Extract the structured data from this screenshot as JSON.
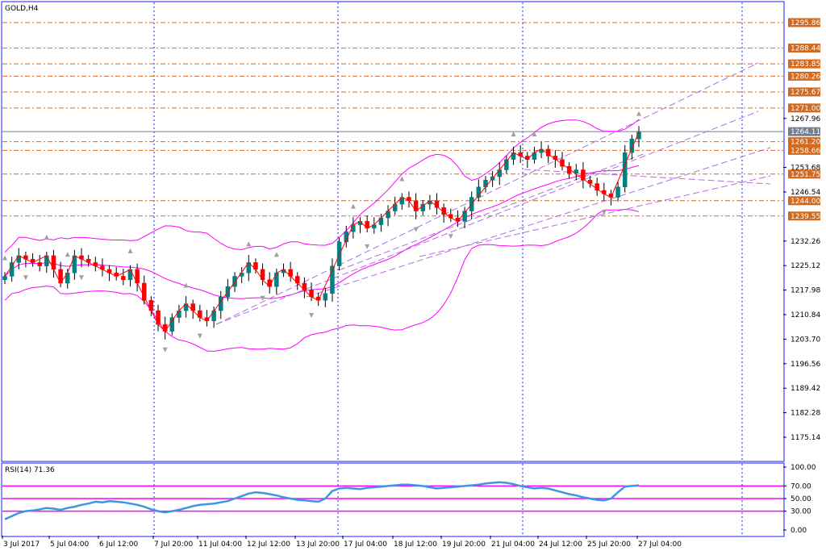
{
  "chart_data": {
    "type": "candlestick",
    "title": "GOLD,H4",
    "symbol": "GOLD",
    "timeframe": "H4",
    "ylim": [
      1170,
      1301
    ],
    "y_ticks": [
      "1295.86",
      "1288.44",
      "1283.85",
      "1280.26",
      "1275.67",
      "1271.00",
      "1267.96",
      "1264.11",
      "1261.20",
      "1258.66",
      "1253.68",
      "1251.75",
      "1246.54",
      "1244.00",
      "1239.55",
      "1232.26",
      "1225.12",
      "1217.98",
      "1210.84",
      "1203.70",
      "1196.56",
      "1189.42",
      "1182.28",
      "1175.14"
    ],
    "x_ticks": [
      "3 Jul 2017",
      "5 Jul 04:00",
      "6 Jul 12:00",
      "7 Jul 20:00",
      "11 Jul 04:00",
      "12 Jul 12:00",
      "13 Jul 20:00",
      "17 Jul 04:00",
      "18 Jul 12:00",
      "19 Jul 20:00",
      "21 Jul 04:00",
      "24 Jul 12:00",
      "25 Jul 20:00",
      "27 Jul 04:00"
    ],
    "current_price": 1264.11,
    "levels": [
      {
        "label": "1295.86",
        "value": 1295.86
      },
      {
        "label": "1288.44",
        "value": 1288.44
      },
      {
        "label": "1283.85",
        "value": 1283.85
      },
      {
        "label": "1280.26",
        "value": 1280.26
      },
      {
        "label": "1275.67",
        "value": 1275.67
      },
      {
        "label": "1271.00",
        "value": 1271.0
      },
      {
        "label": "1261.20",
        "value": 1261.2
      },
      {
        "label": "1258.66",
        "value": 1258.66
      },
      {
        "label": "1251.75",
        "value": 1251.75
      },
      {
        "label": "1244.00",
        "value": 1244.0
      },
      {
        "label": "1239.55",
        "value": 1239.55
      }
    ],
    "close_path": [
      1222,
      1226,
      1228,
      1227,
      1226,
      1225,
      1228,
      1224,
      1220,
      1223,
      1228,
      1227,
      1226,
      1225,
      1224,
      1223,
      1222,
      1221,
      1224,
      1220,
      1215,
      1212,
      1208,
      1206,
      1210,
      1212,
      1214,
      1212,
      1210,
      1209,
      1212,
      1216,
      1219,
      1222,
      1223,
      1226,
      1224,
      1221,
      1219,
      1223,
      1224,
      1222,
      1220,
      1218,
      1216,
      1215,
      1217,
      1225,
      1232,
      1235,
      1237,
      1238,
      1236,
      1237,
      1239,
      1241,
      1243,
      1245,
      1244,
      1241,
      1243,
      1244,
      1242,
      1240,
      1239,
      1238,
      1241,
      1245,
      1248,
      1250,
      1251,
      1253,
      1256,
      1258,
      1257,
      1256,
      1258,
      1259,
      1257,
      1256,
      1254,
      1252,
      1253,
      1250,
      1249,
      1247,
      1246,
      1245,
      1248,
      1258,
      1262,
      1264
    ],
    "rsi": {
      "label": "RSI(14) 71.36",
      "ylim": [
        0,
        100
      ],
      "ticks": [
        "100.00",
        "70.00",
        "50.00",
        "30.00",
        "0.00"
      ],
      "levels": [
        70,
        50,
        30
      ],
      "values": [
        17,
        22,
        27,
        30,
        31,
        33,
        35,
        34,
        32,
        35,
        37,
        40,
        42,
        45,
        44,
        46,
        45,
        44,
        42,
        40,
        37,
        33,
        30,
        28,
        30,
        32,
        35,
        38,
        40,
        41,
        42,
        44,
        46,
        50,
        54,
        58,
        60,
        59,
        57,
        55,
        52,
        50,
        48,
        47,
        46,
        45,
        50,
        62,
        66,
        67,
        66,
        65,
        67,
        68,
        69,
        70,
        71,
        72,
        72,
        71,
        70,
        68,
        66,
        67,
        68,
        69,
        70,
        71,
        72,
        74,
        75,
        76,
        75,
        73,
        70,
        68,
        66,
        67,
        66,
        63,
        60,
        57,
        55,
        52,
        50,
        48,
        47,
        50,
        60,
        69,
        70,
        71
      ]
    },
    "colors": {
      "up_candle": "#008080",
      "down_candle": "#ff0000",
      "bollinger": "#ff00ff",
      "level_line": "#d2691e",
      "level_label_bg": "#d2691e",
      "current_line": "#708090",
      "current_label_bg": "#708090",
      "trend_line": "#b070e0",
      "zigzag": "#ff0000",
      "fractal": "#a0a0a0",
      "rsi_line": "#3c96e6",
      "rsi_level": "#ff00ff",
      "separator": "#1e1eff"
    }
  }
}
